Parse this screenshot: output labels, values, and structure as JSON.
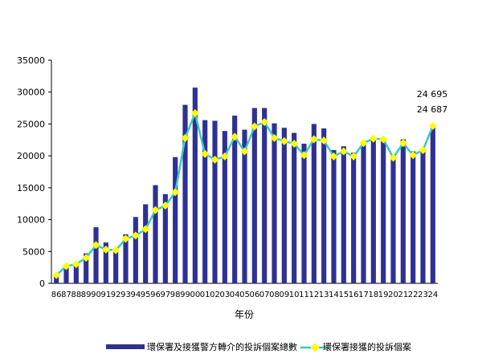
{
  "chart_data": {
    "type": "bar",
    "title": "",
    "xlabel": "年份",
    "ylabel": "",
    "ylim": [
      0,
      35000
    ],
    "yticks": [
      0,
      5000,
      10000,
      15000,
      20000,
      25000,
      30000,
      35000
    ],
    "categories": [
      "86",
      "87",
      "88",
      "89",
      "90",
      "91",
      "92",
      "93",
      "94",
      "95",
      "96",
      "97",
      "98",
      "99",
      "00",
      "01",
      "02",
      "03",
      "04",
      "05",
      "06",
      "07",
      "08",
      "09",
      "10",
      "11",
      "12",
      "13",
      "14",
      "15",
      "16",
      "17",
      "18",
      "19",
      "20",
      "21",
      "22",
      "23",
      "24"
    ],
    "series": [
      {
        "name": "環保署及接獲警方轉介的投訴個案總數",
        "type": "bar",
        "color": "#2e3192",
        "values": [
          1400,
          2700,
          3100,
          4700,
          8800,
          6400,
          5500,
          7700,
          10400,
          12400,
          15400,
          14000,
          19800,
          28000,
          30700,
          25600,
          25500,
          23900,
          26300,
          24100,
          27500,
          27500,
          25100,
          24400,
          23600,
          21900,
          25000,
          24300,
          20900,
          21500,
          20500,
          22300,
          22900,
          22600,
          20000,
          22600,
          20700,
          21200,
          24695
        ]
      },
      {
        "name": "環保署接獲的投訴個案",
        "type": "line",
        "color": "#3ec6c6",
        "marker_color": "#ffff00",
        "values": [
          1300,
          2700,
          3000,
          4000,
          6000,
          5300,
          5200,
          7000,
          7500,
          8500,
          11500,
          12200,
          14300,
          22800,
          26700,
          20300,
          19400,
          19900,
          23000,
          20700,
          24600,
          25300,
          22800,
          22300,
          21900,
          20100,
          22600,
          22400,
          19900,
          20700,
          19900,
          22000,
          22700,
          22600,
          19700,
          22000,
          20100,
          20900,
          24687
        ]
      }
    ],
    "annotations": [
      "24 695",
      "24 687"
    ],
    "grid": false,
    "legend": "bottom"
  }
}
